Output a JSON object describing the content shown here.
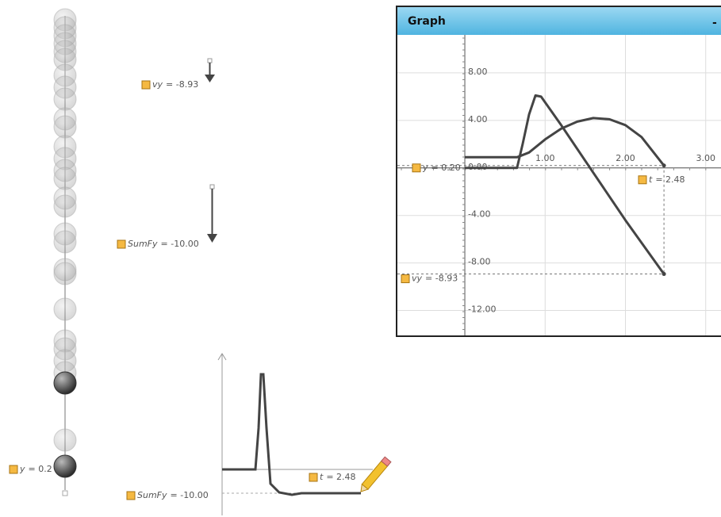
{
  "labels": [
    {
      "name": "y",
      "value": "= 0.2"
    },
    {
      "name": "vy",
      "value": "= -8.93"
    },
    {
      "name": "SumFy",
      "value": "= -10.00"
    },
    {
      "name": "SumFy",
      "value": "= -10.00"
    },
    {
      "name": "t",
      "value": "= 2.48"
    }
  ],
  "graph": {
    "title": "Graph",
    "minimize": "-",
    "chart_data": {
      "type": "line",
      "xlim": [
        -0.84,
        3.21
      ],
      "ylim": [
        -14.1,
        11.2
      ],
      "xticks": [
        {
          "value": 1,
          "label": "1.00"
        },
        {
          "value": 2,
          "label": "2.00"
        },
        {
          "value": 3,
          "label": "3.00"
        }
      ],
      "yticks": [
        {
          "value": 8,
          "label": "8.00"
        },
        {
          "value": 4,
          "label": "4.00"
        },
        {
          "value": 0,
          "label": "0.00"
        },
        {
          "value": -4,
          "label": "-4.00"
        },
        {
          "value": -8,
          "label": "-8.00"
        },
        {
          "value": -12,
          "label": "-12.00"
        }
      ],
      "grid": true,
      "series": [
        {
          "color": "#444444",
          "x": [
            0,
            0.65,
            0.72,
            0.8,
            0.88,
            0.95,
            1.2,
            1.6,
            2.0,
            2.48
          ],
          "values": [
            0,
            0,
            2,
            4.5,
            6.1,
            6.0,
            3.6,
            -0.4,
            -4.4,
            -8.93
          ]
        },
        {
          "color": "#444444",
          "x": [
            0,
            0.65,
            0.8,
            1.0,
            1.2,
            1.4,
            1.6,
            1.8,
            2.0,
            2.2,
            2.48
          ],
          "values": [
            0.9,
            0.9,
            1.3,
            2.4,
            3.3,
            3.9,
            4.2,
            4.1,
            3.6,
            2.6,
            0.2
          ]
        }
      ],
      "markers": [
        {
          "name": "y",
          "value": "= 0.20"
        },
        {
          "name": "t",
          "value": "= 2.48"
        },
        {
          "name": "vy",
          "value": "= -8.93"
        }
      ]
    }
  }
}
